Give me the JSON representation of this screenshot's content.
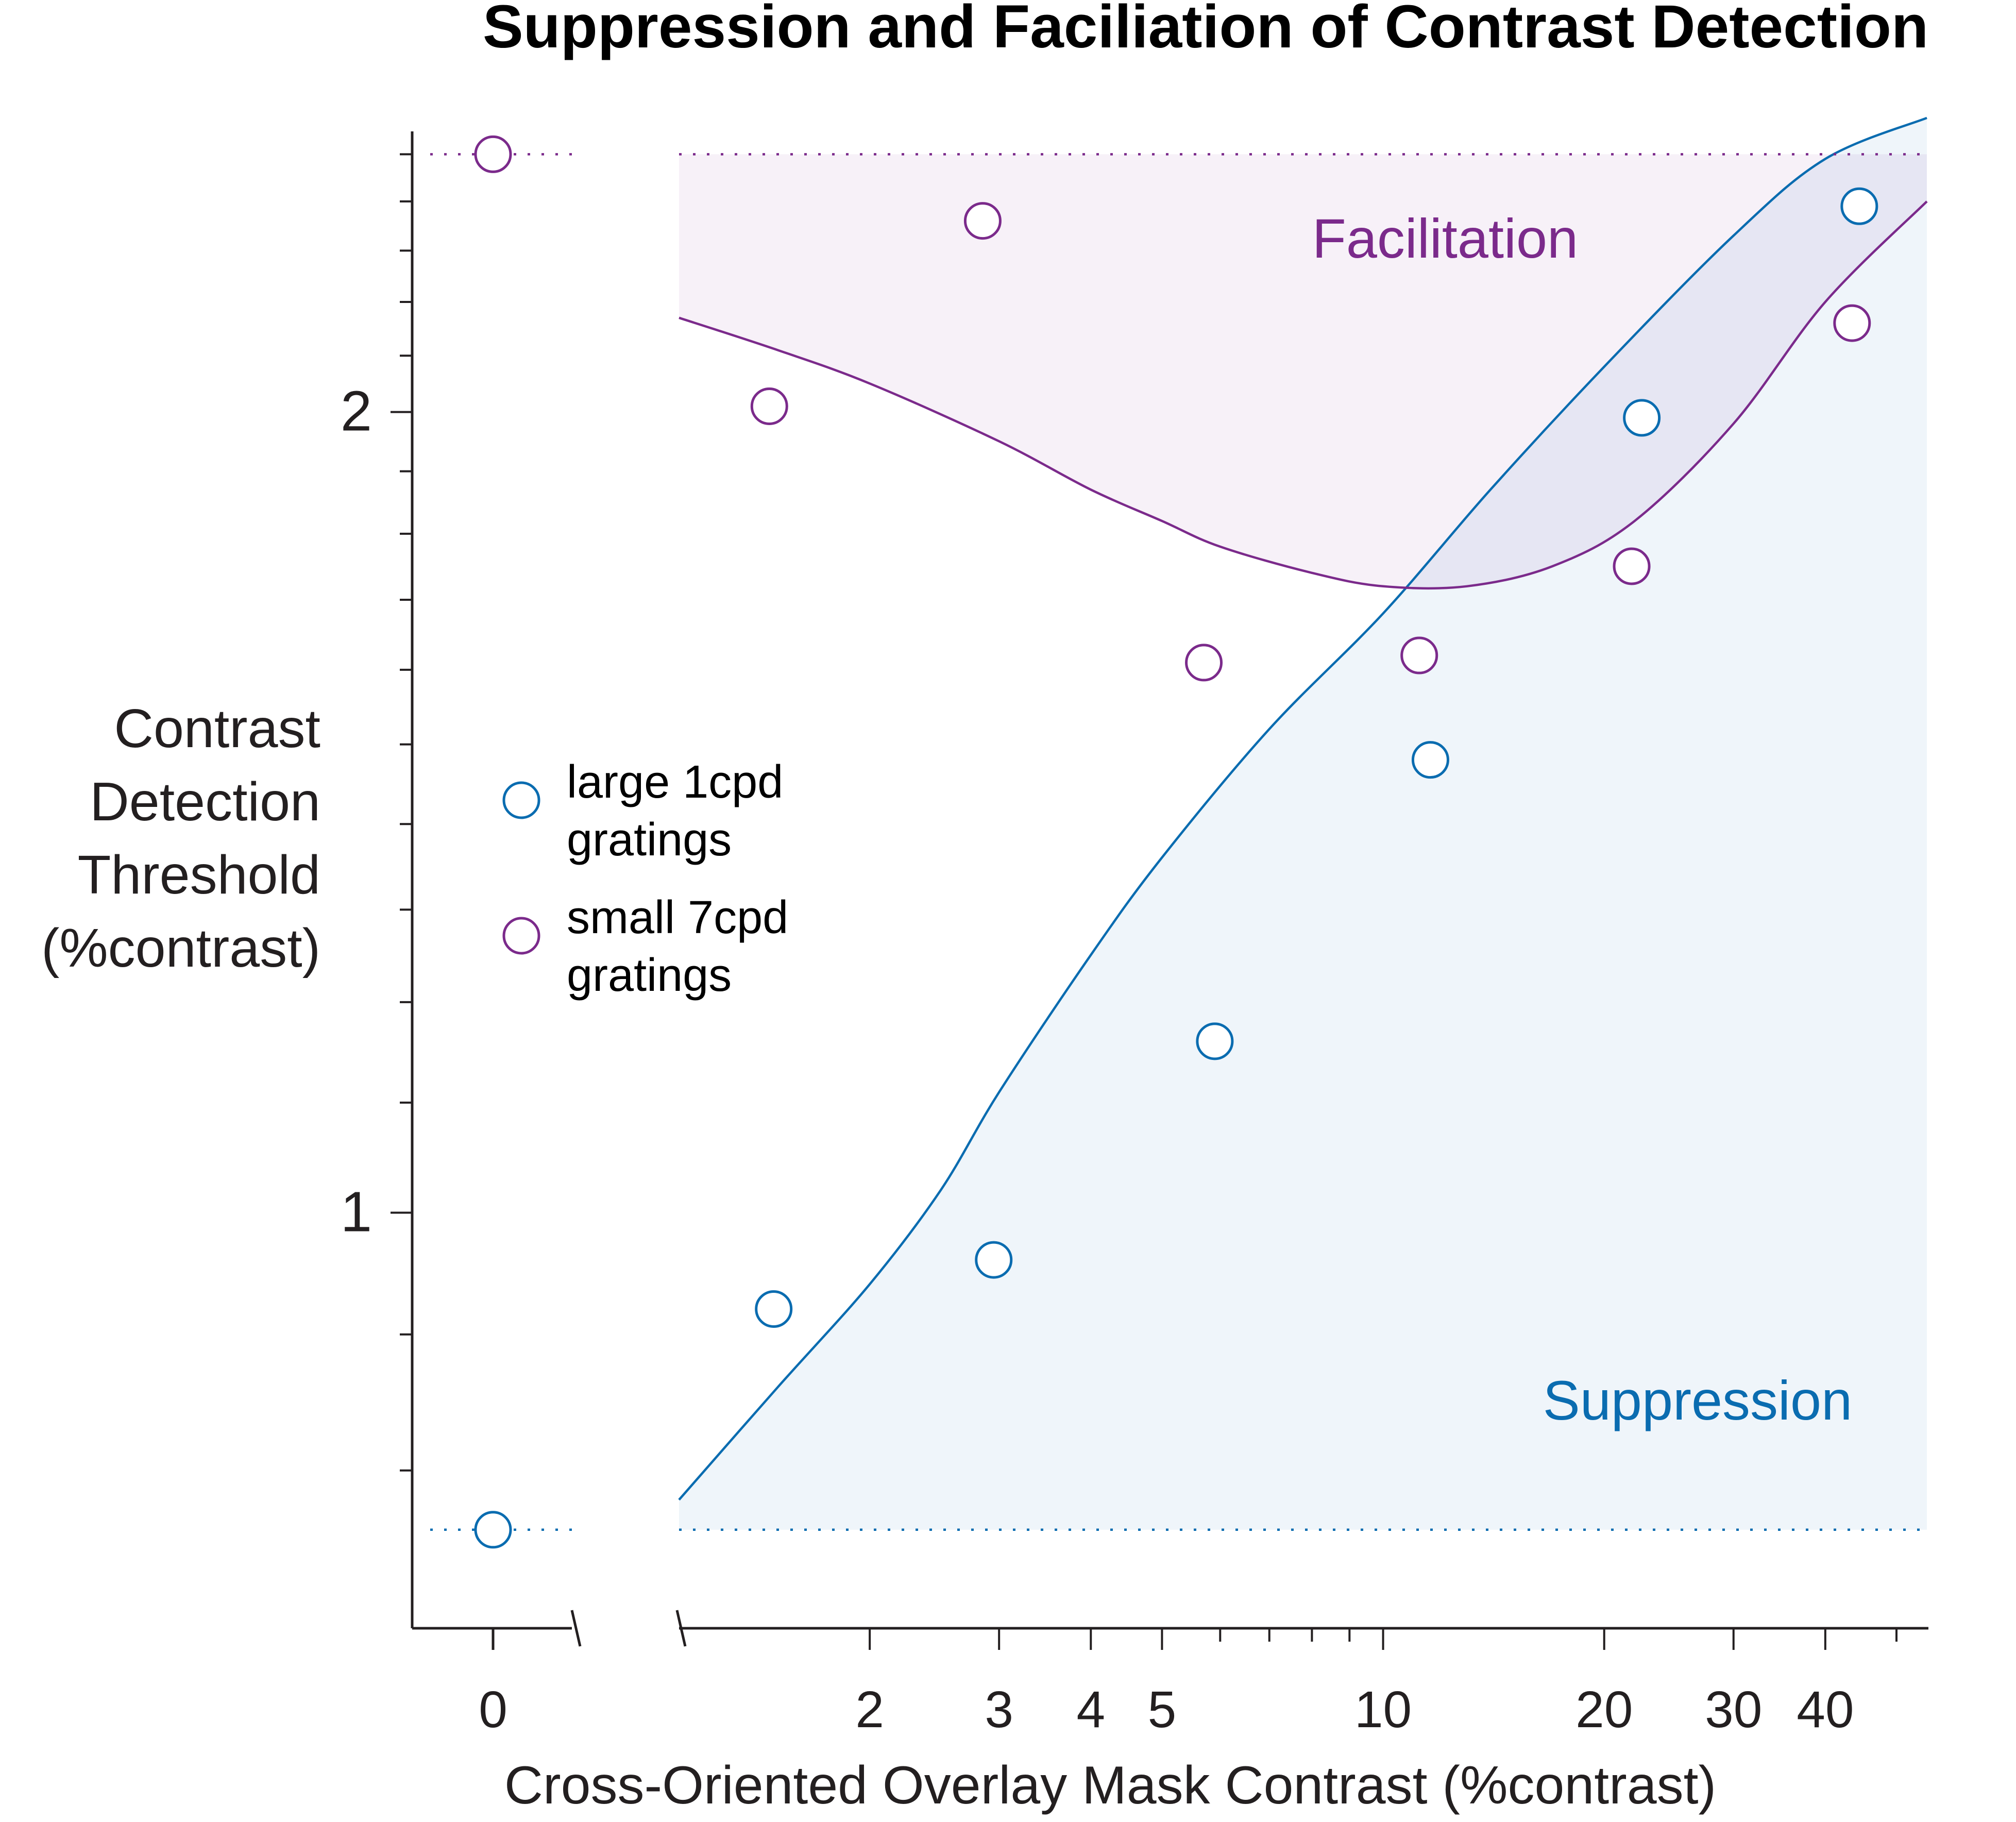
{
  "chart_data": {
    "type": "scatter",
    "title": "Suppression and Faciliation of Contrast Detection",
    "xlabel": "Cross-Oriented Overlay Mask Contrast (%contrast)",
    "ylabel_lines": [
      "Contrast",
      "Detection",
      "Threshold",
      "(%contrast)"
    ],
    "x_scale": "log",
    "y_scale": "log",
    "x_break_label": "0",
    "x_ticks": [
      {
        "value": 2,
        "label": "2"
      },
      {
        "value": 3,
        "label": "3"
      },
      {
        "value": 4,
        "label": "4"
      },
      {
        "value": 5,
        "label": "5"
      },
      {
        "value": 10,
        "label": "10"
      },
      {
        "value": 20,
        "label": "20"
      },
      {
        "value": 30,
        "label": "30"
      },
      {
        "value": 40,
        "label": "40"
      }
    ],
    "y_ticks": [
      {
        "value": 1,
        "label": "1"
      },
      {
        "value": 2,
        "label": "2"
      }
    ],
    "xlim": [
      1.1,
      55
    ],
    "ylim": [
      0.72,
      2.55
    ],
    "colors": {
      "large": "#0a6cb0",
      "small": "#7b2a8b",
      "facilitation_fill": "#f7f1f8",
      "suppression_fill": "#eff5fa",
      "overlap_fill": "#e6e6f3",
      "axis": "#231f20"
    },
    "series": [
      {
        "name": "large 1cpd gratings",
        "key": "large",
        "baseline": 0.76,
        "points": [
          [
            1.48,
            0.92
          ],
          [
            2.95,
            0.96
          ],
          [
            5.9,
            1.16
          ],
          [
            11.6,
            1.48
          ],
          [
            22.5,
            1.99
          ],
          [
            44.5,
            2.39
          ]
        ]
      },
      {
        "name": "small 7cpd gratings",
        "key": "small",
        "baseline": 2.5,
        "points": [
          [
            1.46,
            2.01
          ],
          [
            2.85,
            2.36
          ],
          [
            5.7,
            1.61
          ],
          [
            11.2,
            1.62
          ],
          [
            21.8,
            1.75
          ],
          [
            43.5,
            2.16
          ]
        ]
      }
    ],
    "fit_curves": {
      "large": [
        [
          1.1,
          0.78
        ],
        [
          1.5,
          0.86
        ],
        [
          2.0,
          0.94
        ],
        [
          2.5,
          1.02
        ],
        [
          3.0,
          1.11
        ],
        [
          4.0,
          1.25
        ],
        [
          5.0,
          1.36
        ],
        [
          7.0,
          1.52
        ],
        [
          10.0,
          1.68
        ],
        [
          14.0,
          1.87
        ],
        [
          20.0,
          2.08
        ],
        [
          30.0,
          2.33
        ],
        [
          40.0,
          2.49
        ],
        [
          55.0,
          2.58
        ]
      ],
      "small": [
        [
          1.1,
          2.17
        ],
        [
          1.5,
          2.11
        ],
        [
          2.0,
          2.05
        ],
        [
          3.0,
          1.95
        ],
        [
          4.0,
          1.87
        ],
        [
          5.0,
          1.82
        ],
        [
          6.0,
          1.78
        ],
        [
          8.0,
          1.74
        ],
        [
          10.0,
          1.72
        ],
        [
          13.0,
          1.72
        ],
        [
          17.0,
          1.75
        ],
        [
          22.0,
          1.82
        ],
        [
          30.0,
          1.98
        ],
        [
          40.0,
          2.2
        ],
        [
          55.0,
          2.4
        ]
      ]
    },
    "region_labels": {
      "facilitation": "Facilitation",
      "suppression": "Suppression"
    },
    "legend_placement": "left-middle",
    "grid": false
  }
}
